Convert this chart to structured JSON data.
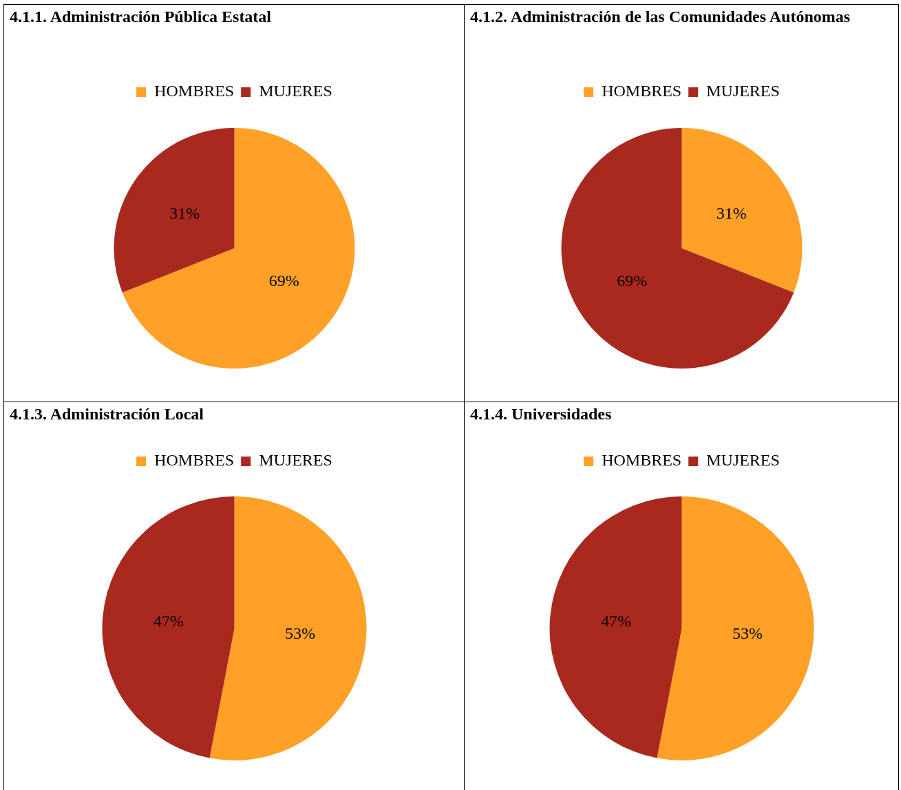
{
  "chart_data": [
    {
      "type": "pie",
      "title": "4.1.1. Administración Pública Estatal",
      "categories": [
        "HOMBRES",
        "MUJERES"
      ],
      "values": [
        69,
        31
      ],
      "value_labels": [
        "69%",
        "31%"
      ],
      "colors": [
        "#ffa126",
        "#a9291f"
      ],
      "legend": "top"
    },
    {
      "type": "pie",
      "title": "4.1.2. Administración de las Comunidades Autónomas",
      "categories": [
        "HOMBRES",
        "MUJERES"
      ],
      "values": [
        31,
        69
      ],
      "value_labels": [
        "31%",
        "69%"
      ],
      "colors": [
        "#ffa126",
        "#a9291f"
      ],
      "legend": "top"
    },
    {
      "type": "pie",
      "title": "4.1.3. Administración Local",
      "categories": [
        "HOMBRES",
        "MUJERES"
      ],
      "values": [
        53,
        47
      ],
      "value_labels": [
        "53%",
        "47%"
      ],
      "colors": [
        "#ffa126",
        "#a9291f"
      ],
      "legend": "top"
    },
    {
      "type": "pie",
      "title": "4.1.4. Universidades",
      "categories": [
        "HOMBRES",
        "MUJERES"
      ],
      "values": [
        53,
        47
      ],
      "value_labels": [
        "53%",
        "47%"
      ],
      "colors": [
        "#ffa126",
        "#a9291f"
      ],
      "legend": "top"
    }
  ]
}
